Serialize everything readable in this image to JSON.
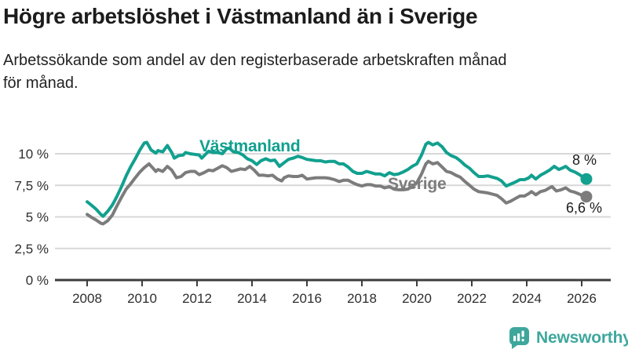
{
  "title": "Högre arbetslöshet i Västmanland än i Sverige",
  "subtitle": "Arbetssökande som andel av den registerbaserade arbetskraften månad\nför månad.",
  "branding": {
    "name": "Newsworthy",
    "color": "#3ea79c"
  },
  "colors": {
    "vastmanland": "#12a08f",
    "sverige": "#7c7c7c",
    "grid": "#d8d8d8",
    "axis": "#3d3d3d",
    "axis_text": "#2e2e2e",
    "annotation_text": "#1c1c1c",
    "background": "#ffffff"
  },
  "chart_data": {
    "type": "line",
    "title": "Högre arbetslöshet i Västmanland än i Sverige",
    "subtitle": "Arbetssökande som andel av den registerbaserade arbetskraften månad för månad.",
    "unit": "%",
    "grid": "horizontal-only",
    "legend_position": "inline-labels",
    "x_axis": {
      "min": 2007.8,
      "max": 2027.0,
      "ticks": [
        2008,
        2010,
        2012,
        2014,
        2016,
        2018,
        2020,
        2022,
        2024,
        2026
      ]
    },
    "y_axis": {
      "min": 0,
      "max": 11.2,
      "ticks": [
        {
          "value": 10,
          "label": "10 %"
        },
        {
          "value": 7.5,
          "label": "7,5 %"
        },
        {
          "value": 5,
          "label": "5 %"
        },
        {
          "value": 2.5,
          "label": "2,5 %"
        },
        {
          "value": 0,
          "label": "0 %"
        }
      ]
    },
    "series": [
      {
        "name": "Västmanland",
        "color": "#12a08f",
        "end_label": "8 %",
        "end_value": 8.0,
        "points": [
          [
            2008.0,
            6.2
          ],
          [
            2008.17,
            5.9
          ],
          [
            2008.33,
            5.6
          ],
          [
            2008.5,
            5.2
          ],
          [
            2008.58,
            5.05
          ],
          [
            2008.75,
            5.45
          ],
          [
            2008.92,
            5.95
          ],
          [
            2009.08,
            6.6
          ],
          [
            2009.25,
            7.4
          ],
          [
            2009.42,
            8.25
          ],
          [
            2009.58,
            8.95
          ],
          [
            2009.75,
            9.6
          ],
          [
            2009.92,
            10.3
          ],
          [
            2010.08,
            10.85
          ],
          [
            2010.17,
            10.9
          ],
          [
            2010.33,
            10.3
          ],
          [
            2010.5,
            10.05
          ],
          [
            2010.58,
            10.25
          ],
          [
            2010.75,
            10.15
          ],
          [
            2010.92,
            10.65
          ],
          [
            2011.08,
            10.1
          ],
          [
            2011.17,
            9.65
          ],
          [
            2011.33,
            9.85
          ],
          [
            2011.5,
            9.9
          ],
          [
            2011.58,
            10.1
          ],
          [
            2011.75,
            10.0
          ],
          [
            2011.92,
            9.95
          ],
          [
            2012.08,
            9.9
          ],
          [
            2012.17,
            9.65
          ],
          [
            2012.33,
            10.0
          ],
          [
            2012.42,
            10.2
          ],
          [
            2012.58,
            10.1
          ],
          [
            2012.75,
            10.1
          ],
          [
            2012.92,
            10.0
          ],
          [
            2013.08,
            10.4
          ],
          [
            2013.17,
            10.45
          ],
          [
            2013.33,
            10.15
          ],
          [
            2013.5,
            10.1
          ],
          [
            2013.67,
            9.9
          ],
          [
            2013.83,
            9.6
          ],
          [
            2014.0,
            9.45
          ],
          [
            2014.17,
            9.15
          ],
          [
            2014.33,
            9.45
          ],
          [
            2014.5,
            9.6
          ],
          [
            2014.67,
            9.45
          ],
          [
            2014.83,
            9.5
          ],
          [
            2015.0,
            9.0
          ],
          [
            2015.17,
            9.3
          ],
          [
            2015.33,
            9.55
          ],
          [
            2015.5,
            9.65
          ],
          [
            2015.67,
            9.8
          ],
          [
            2015.83,
            9.7
          ],
          [
            2016.0,
            9.55
          ],
          [
            2016.17,
            9.5
          ],
          [
            2016.33,
            9.45
          ],
          [
            2016.5,
            9.45
          ],
          [
            2016.67,
            9.35
          ],
          [
            2016.83,
            9.4
          ],
          [
            2017.0,
            9.4
          ],
          [
            2017.17,
            9.2
          ],
          [
            2017.33,
            9.2
          ],
          [
            2017.5,
            8.95
          ],
          [
            2017.67,
            8.6
          ],
          [
            2017.83,
            8.45
          ],
          [
            2018.0,
            8.45
          ],
          [
            2018.17,
            8.6
          ],
          [
            2018.33,
            8.5
          ],
          [
            2018.5,
            8.4
          ],
          [
            2018.67,
            8.4
          ],
          [
            2018.83,
            8.25
          ],
          [
            2019.0,
            8.5
          ],
          [
            2019.17,
            8.35
          ],
          [
            2019.33,
            8.4
          ],
          [
            2019.5,
            8.55
          ],
          [
            2019.67,
            8.75
          ],
          [
            2019.83,
            9.0
          ],
          [
            2020.0,
            9.2
          ],
          [
            2020.17,
            9.9
          ],
          [
            2020.33,
            10.75
          ],
          [
            2020.42,
            10.9
          ],
          [
            2020.58,
            10.7
          ],
          [
            2020.75,
            10.85
          ],
          [
            2020.92,
            10.55
          ],
          [
            2021.08,
            10.1
          ],
          [
            2021.25,
            9.85
          ],
          [
            2021.42,
            9.7
          ],
          [
            2021.58,
            9.45
          ],
          [
            2021.75,
            9.1
          ],
          [
            2021.92,
            8.85
          ],
          [
            2022.08,
            8.5
          ],
          [
            2022.25,
            8.2
          ],
          [
            2022.42,
            8.2
          ],
          [
            2022.58,
            8.25
          ],
          [
            2022.75,
            8.15
          ],
          [
            2022.92,
            8.05
          ],
          [
            2023.08,
            7.85
          ],
          [
            2023.25,
            7.45
          ],
          [
            2023.42,
            7.6
          ],
          [
            2023.58,
            7.75
          ],
          [
            2023.75,
            7.95
          ],
          [
            2023.92,
            7.95
          ],
          [
            2024.08,
            8.1
          ],
          [
            2024.17,
            8.3
          ],
          [
            2024.33,
            8.0
          ],
          [
            2024.5,
            8.3
          ],
          [
            2024.67,
            8.5
          ],
          [
            2024.83,
            8.7
          ],
          [
            2025.0,
            9.0
          ],
          [
            2025.17,
            8.75
          ],
          [
            2025.33,
            8.9
          ],
          [
            2025.42,
            9.0
          ],
          [
            2025.58,
            8.7
          ],
          [
            2025.75,
            8.55
          ],
          [
            2025.92,
            8.35
          ],
          [
            2026.08,
            8.1
          ],
          [
            2026.17,
            8.0
          ]
        ]
      },
      {
        "name": "Sverige",
        "color": "#7c7c7c",
        "end_label": "6,6 %",
        "end_value": 6.6,
        "points": [
          [
            2008.0,
            5.2
          ],
          [
            2008.17,
            4.95
          ],
          [
            2008.33,
            4.75
          ],
          [
            2008.5,
            4.5
          ],
          [
            2008.58,
            4.45
          ],
          [
            2008.75,
            4.7
          ],
          [
            2008.92,
            5.15
          ],
          [
            2009.08,
            5.85
          ],
          [
            2009.25,
            6.55
          ],
          [
            2009.42,
            7.2
          ],
          [
            2009.58,
            7.6
          ],
          [
            2009.75,
            8.1
          ],
          [
            2009.92,
            8.55
          ],
          [
            2010.08,
            8.9
          ],
          [
            2010.25,
            9.2
          ],
          [
            2010.42,
            8.8
          ],
          [
            2010.5,
            8.6
          ],
          [
            2010.58,
            8.75
          ],
          [
            2010.75,
            8.6
          ],
          [
            2010.92,
            9.0
          ],
          [
            2011.08,
            8.7
          ],
          [
            2011.25,
            8.1
          ],
          [
            2011.42,
            8.2
          ],
          [
            2011.58,
            8.5
          ],
          [
            2011.75,
            8.6
          ],
          [
            2011.92,
            8.6
          ],
          [
            2012.08,
            8.35
          ],
          [
            2012.25,
            8.5
          ],
          [
            2012.42,
            8.7
          ],
          [
            2012.58,
            8.65
          ],
          [
            2012.75,
            8.85
          ],
          [
            2012.92,
            9.05
          ],
          [
            2013.08,
            8.9
          ],
          [
            2013.25,
            8.6
          ],
          [
            2013.42,
            8.7
          ],
          [
            2013.58,
            8.8
          ],
          [
            2013.75,
            8.75
          ],
          [
            2013.92,
            9.0
          ],
          [
            2014.08,
            8.7
          ],
          [
            2014.25,
            8.3
          ],
          [
            2014.42,
            8.3
          ],
          [
            2014.58,
            8.25
          ],
          [
            2014.75,
            8.3
          ],
          [
            2014.92,
            8.0
          ],
          [
            2015.08,
            7.85
          ],
          [
            2015.17,
            8.1
          ],
          [
            2015.33,
            8.25
          ],
          [
            2015.5,
            8.2
          ],
          [
            2015.67,
            8.2
          ],
          [
            2015.83,
            8.3
          ],
          [
            2016.0,
            8.0
          ],
          [
            2016.17,
            8.05
          ],
          [
            2016.33,
            8.1
          ],
          [
            2016.5,
            8.1
          ],
          [
            2016.67,
            8.1
          ],
          [
            2016.83,
            8.05
          ],
          [
            2017.0,
            7.95
          ],
          [
            2017.17,
            7.8
          ],
          [
            2017.33,
            7.9
          ],
          [
            2017.5,
            7.9
          ],
          [
            2017.67,
            7.7
          ],
          [
            2017.83,
            7.55
          ],
          [
            2018.0,
            7.45
          ],
          [
            2018.17,
            7.55
          ],
          [
            2018.33,
            7.55
          ],
          [
            2018.5,
            7.45
          ],
          [
            2018.67,
            7.45
          ],
          [
            2018.83,
            7.3
          ],
          [
            2019.0,
            7.4
          ],
          [
            2019.17,
            7.2
          ],
          [
            2019.33,
            7.15
          ],
          [
            2019.5,
            7.15
          ],
          [
            2019.67,
            7.2
          ],
          [
            2019.83,
            7.4
          ],
          [
            2020.0,
            7.7
          ],
          [
            2020.17,
            8.4
          ],
          [
            2020.33,
            9.2
          ],
          [
            2020.42,
            9.4
          ],
          [
            2020.58,
            9.2
          ],
          [
            2020.75,
            9.3
          ],
          [
            2020.92,
            8.95
          ],
          [
            2021.08,
            8.6
          ],
          [
            2021.25,
            8.5
          ],
          [
            2021.42,
            8.3
          ],
          [
            2021.58,
            8.15
          ],
          [
            2021.75,
            7.8
          ],
          [
            2021.92,
            7.5
          ],
          [
            2022.08,
            7.2
          ],
          [
            2022.25,
            7.0
          ],
          [
            2022.42,
            6.95
          ],
          [
            2022.58,
            6.9
          ],
          [
            2022.75,
            6.8
          ],
          [
            2022.92,
            6.7
          ],
          [
            2023.08,
            6.45
          ],
          [
            2023.25,
            6.1
          ],
          [
            2023.42,
            6.25
          ],
          [
            2023.58,
            6.45
          ],
          [
            2023.75,
            6.65
          ],
          [
            2023.92,
            6.65
          ],
          [
            2024.08,
            6.85
          ],
          [
            2024.17,
            7.0
          ],
          [
            2024.33,
            6.75
          ],
          [
            2024.5,
            7.0
          ],
          [
            2024.67,
            7.1
          ],
          [
            2024.83,
            7.3
          ],
          [
            2024.92,
            7.4
          ],
          [
            2025.08,
            7.05
          ],
          [
            2025.25,
            7.15
          ],
          [
            2025.42,
            7.3
          ],
          [
            2025.58,
            7.05
          ],
          [
            2025.75,
            6.95
          ],
          [
            2025.92,
            6.8
          ],
          [
            2026.08,
            6.65
          ],
          [
            2026.17,
            6.6
          ]
        ]
      }
    ]
  }
}
